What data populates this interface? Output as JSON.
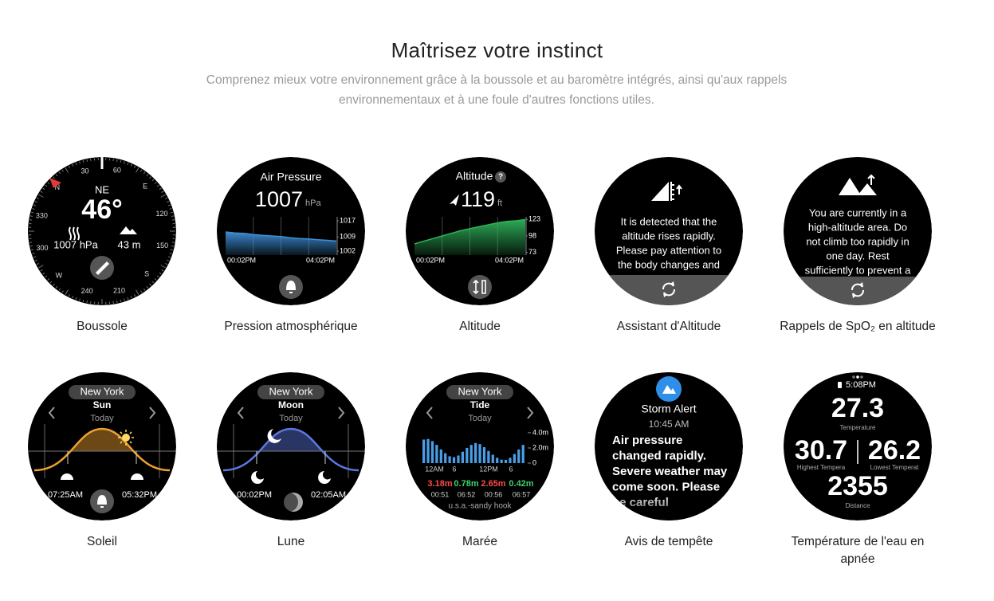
{
  "header": {
    "title": "Maîtrisez votre instinct",
    "subtitle": "Comprenez mieux votre environnement grâce à la boussole et au baromètre intégrés, ainsi qu'aux rappels environnementaux et à une foule d'autres fonctions utiles."
  },
  "features": [
    {
      "caption": "Boussole",
      "watch": {
        "ring": [
          "N",
          "30",
          "60",
          "E",
          "120",
          "150",
          "S",
          "210",
          "240",
          "W",
          "300",
          "330"
        ],
        "heading": "NE",
        "bearing": "46°",
        "pressure": "1007 hPa",
        "altitude": "43 m"
      }
    },
    {
      "caption": "Pression atmosphérique",
      "watch": {
        "title": "Air Pressure",
        "reading": "1007",
        "unit": "hPa",
        "chart": {
          "type": "area",
          "color": "#3f8fd8",
          "values": [
            1011.5,
            1011,
            1010.8,
            1010.2,
            1009.8,
            1009.5,
            1009.2,
            1008.6,
            1008.2,
            1008,
            1007.6,
            1007.3,
            1007
          ],
          "ylim": [
            1000,
            1019
          ],
          "yticks": [
            1017,
            1009,
            1002
          ],
          "start": "00:02PM",
          "end": "04:02PM"
        }
      }
    },
    {
      "caption": "Altitude",
      "watch": {
        "title": "Altitude",
        "help": "?",
        "reading": "119",
        "unit": "ft",
        "chart": {
          "type": "area",
          "color": "#2fb35a",
          "values": [
            86,
            90,
            94,
            98,
            102,
            106,
            109,
            112,
            115,
            118,
            120,
            121,
            123
          ],
          "ylim": [
            69,
            127
          ],
          "yticks": [
            123,
            98,
            73
          ],
          "start": "00:02PM",
          "end": "04:02PM"
        }
      }
    },
    {
      "caption": "Assistant d'Altitude",
      "watch": {
        "message": [
          "It is detected that the",
          "altitude rises rapidly.",
          "Please pay attention to",
          "the body changes and"
        ]
      }
    },
    {
      "caption": "Rappels de SpO₂ en altitude",
      "watch": {
        "message": [
          "You are currently in a",
          "high-altitude area. Do",
          "not climb too rapidly in",
          "one day. Rest",
          "sufficiently to prevent a"
        ]
      }
    },
    {
      "caption": "Soleil",
      "watch": {
        "city": "New York",
        "title": "Sun",
        "day": "Today",
        "rise": "07:25AM",
        "set": "05:32PM"
      }
    },
    {
      "caption": "Lune",
      "watch": {
        "city": "New York",
        "title": "Moon",
        "day": "Today",
        "rise": "00:02PM",
        "set": "02:05AM"
      }
    },
    {
      "caption": "Marée",
      "watch": {
        "city": "New York",
        "title": "Tide",
        "day": "Today",
        "chart": {
          "type": "bar",
          "color": "#4a9ee8",
          "values": [
            3.1,
            3.18,
            2.9,
            2.4,
            1.8,
            1.3,
            0.9,
            0.78,
            1.0,
            1.5,
            2.0,
            2.4,
            2.65,
            2.5,
            2.1,
            1.6,
            1.1,
            0.7,
            0.45,
            0.42,
            0.7,
            1.2,
            1.8,
            2.4
          ],
          "ylim": [
            0,
            4.2
          ],
          "yticks": [
            {
              "value": 4,
              "label": "4.0m"
            },
            {
              "value": 2,
              "label": "2.0m"
            },
            0
          ],
          "xlabels": [
            "12AM",
            "6",
            "12PM",
            "6"
          ]
        },
        "extremes": [
          {
            "height": "3.18m",
            "time": "00:51"
          },
          {
            "height": "0.78m",
            "time": "06:52"
          },
          {
            "height": "2.65m",
            "time": "00:56"
          },
          {
            "height": "0.42m",
            "time": "06:57"
          }
        ],
        "station": "u.s.a.-sandy hook"
      }
    },
    {
      "caption": "Avis de tempête",
      "watch": {
        "title": "Storm Alert",
        "time": "10:45 AM",
        "message": [
          "Air pressure",
          "changed rapidly.",
          "Severe weather may",
          "come soon. Please",
          "be careful"
        ]
      }
    },
    {
      "caption": "Température de l'eau en apnée",
      "watch": {
        "clock": "5:08PM",
        "current": "27.3",
        "current_label": "Temperature",
        "highest": "30.7",
        "highest_label": "Highest Tempera",
        "lowest": "26.2",
        "lowest_label": "Lowest Temperat",
        "distance": "2355",
        "distance_label": "Distance"
      }
    }
  ]
}
